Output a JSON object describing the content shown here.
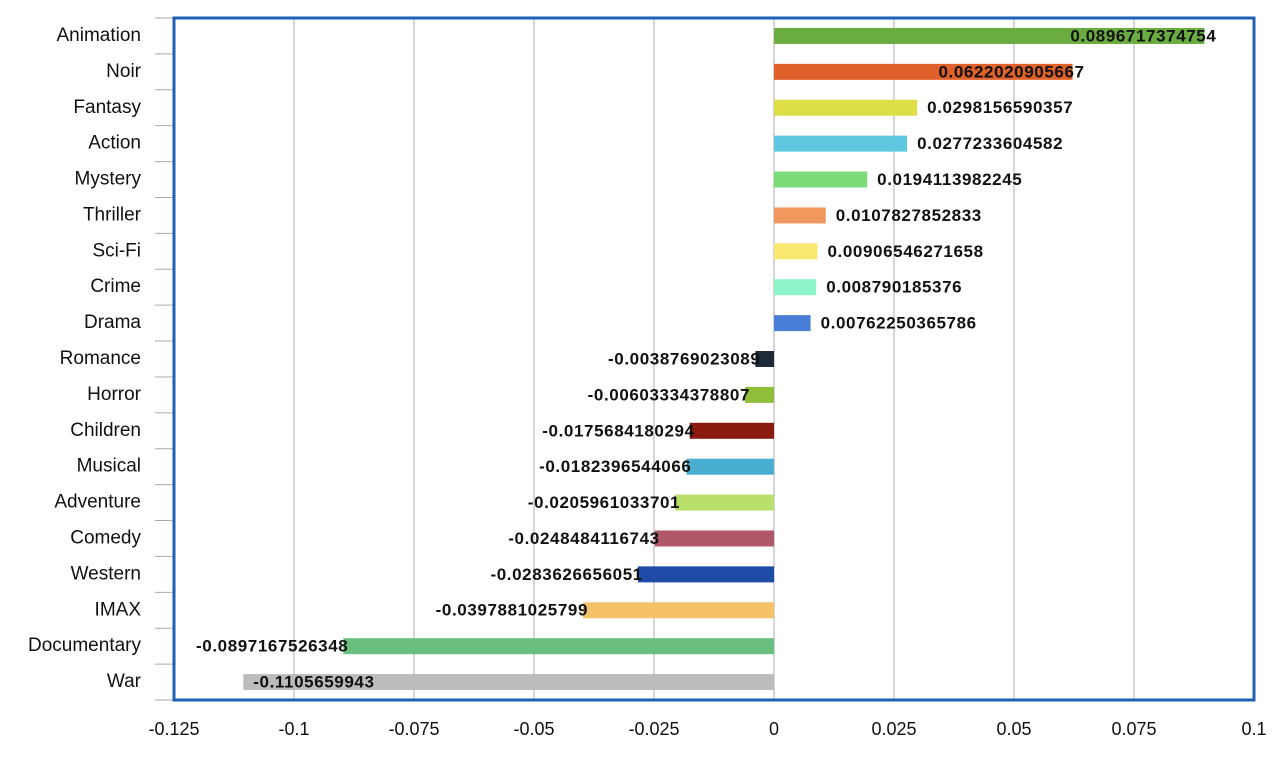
{
  "chart_data": {
    "type": "barh",
    "categories": [
      "Animation",
      "Noir",
      "Fantasy",
      "Action",
      "Mystery",
      "Thriller",
      "Sci-Fi",
      "Crime",
      "Drama",
      "Romance",
      "Horror",
      "Children",
      "Musical",
      "Adventure",
      "Comedy",
      "Western",
      "IMAX",
      "Documentary",
      "War"
    ],
    "values": [
      0.0896717374754,
      0.0622020905667,
      0.0298156590357,
      0.0277233604582,
      0.0194113982245,
      0.0107827852833,
      0.00906546271658,
      0.008790185376,
      0.00762250365786,
      -0.0038769023089,
      -0.00603334378807,
      -0.0175684180294,
      -0.0182396544066,
      -0.0205961033701,
      -0.0248484116743,
      -0.0283626656051,
      -0.0397881025799,
      -0.0897167526348,
      -0.1105659943
    ],
    "colors": [
      "#6aac3f",
      "#e0602a",
      "#dede45",
      "#5ec8e0",
      "#7ddc7a",
      "#f0985e",
      "#fbe870",
      "#8ef5c8",
      "#4a7ed6",
      "#1e2a3a",
      "#8fbf3a",
      "#8a1a10",
      "#4aaed0",
      "#b8e06a",
      "#b05868",
      "#1e4aa8",
      "#f5c26a",
      "#6abf80",
      "#bcbcbc"
    ],
    "xlim": [
      -0.125,
      0.1
    ],
    "xticks": [
      -0.125,
      -0.1,
      -0.075,
      -0.05,
      -0.025,
      0,
      0.025,
      0.05,
      0.075,
      0.1
    ],
    "grid": true
  }
}
